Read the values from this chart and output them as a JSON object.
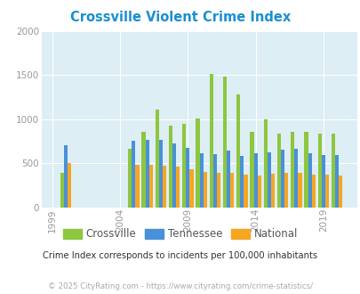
{
  "title": "Crossville Violent Crime Index",
  "title_color": "#1a8fd1",
  "subtitle": "Crime Index corresponds to incidents per 100,000 inhabitants",
  "footer": "© 2025 CityRating.com - https://www.cityrating.com/crime-statistics/",
  "years": [
    2000,
    2005,
    2006,
    2007,
    2008,
    2009,
    2010,
    2011,
    2012,
    2013,
    2014,
    2015,
    2016,
    2017,
    2018,
    2019,
    2020
  ],
  "crossville": [
    390,
    660,
    860,
    1110,
    930,
    950,
    1005,
    1515,
    1480,
    1280,
    855,
    1000,
    830,
    855,
    855,
    830,
    830
  ],
  "tennessee": [
    700,
    750,
    760,
    760,
    720,
    670,
    615,
    605,
    645,
    580,
    610,
    625,
    655,
    660,
    610,
    595,
    595
  ],
  "national": [
    500,
    480,
    480,
    475,
    460,
    435,
    405,
    390,
    390,
    370,
    365,
    385,
    395,
    390,
    375,
    370,
    365
  ],
  "bar_colors": {
    "crossville": "#8dc63f",
    "tennessee": "#4a90d9",
    "national": "#f5a623"
  },
  "xlim_labels": [
    "1999",
    "2004",
    "2009",
    "2014",
    "2019"
  ],
  "xlim_label_years": [
    1999,
    2004,
    2009,
    2014,
    2019
  ],
  "ylim": [
    0,
    2000
  ],
  "yticks": [
    0,
    500,
    1000,
    1500,
    2000
  ],
  "plot_bg_color": "#ddeef5",
  "legend_labels": [
    "Crossville",
    "Tennessee",
    "National"
  ],
  "bar_width": 0.27,
  "tick_label_color": "#999999",
  "grid_color": "#ffffff",
  "subtitle_color": "#333333",
  "footer_color": "#aaaaaa",
  "legend_text_color": "#555555"
}
